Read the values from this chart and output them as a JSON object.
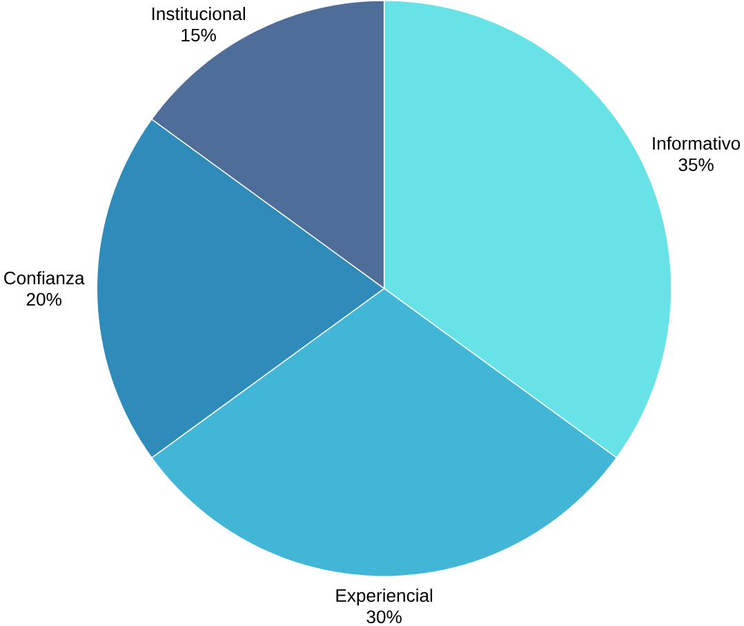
{
  "chart_data": {
    "type": "pie",
    "categories": [
      "Informativo",
      "Experiencial",
      "Confianza",
      "Institucional"
    ],
    "values": [
      35,
      30,
      20,
      15
    ],
    "value_labels": [
      "35%",
      "30%",
      "20%",
      "15%"
    ],
    "colors": [
      "#67e3e8",
      "#41b6d6",
      "#2e8bba",
      "#4e6d99"
    ]
  }
}
